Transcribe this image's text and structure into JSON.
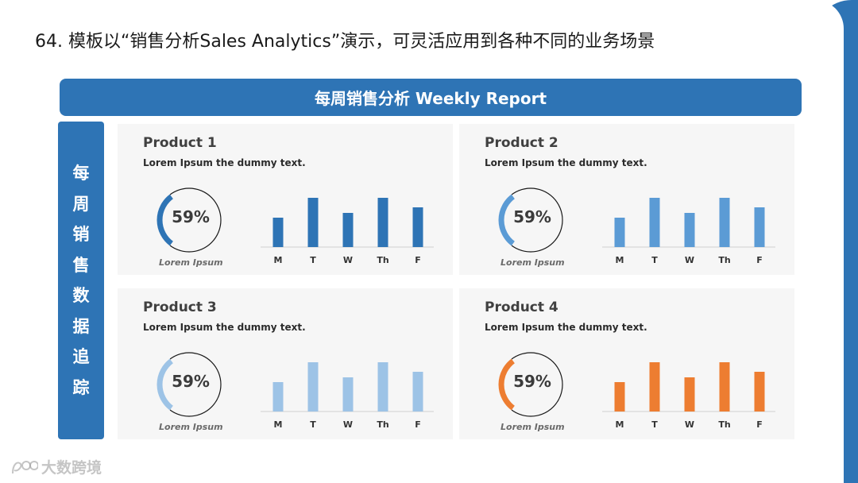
{
  "slide_title": "64. 模板以“销售分析Sales Analytics”演示，可灵活应用到各种不同的业务场景",
  "banner_title": "每周销售分析 Weekly Report",
  "side_label_chars": [
    "每",
    "周",
    "销",
    "售",
    "数",
    "据",
    "追",
    "踪"
  ],
  "watermark": "大数跨境",
  "chart_data": [
    {
      "type": "bar",
      "title": "Product 1",
      "subtitle": "Lorem Ipsum the dummy text.",
      "gauge_percent": 59,
      "gauge_label": "59%",
      "caption": "Lorem Ipsum",
      "categories": [
        "M",
        "T",
        "W",
        "Th",
        "F"
      ],
      "values": [
        37,
        62,
        43,
        62,
        50
      ],
      "ylim": [
        0,
        70
      ],
      "color": "#2e74b5"
    },
    {
      "type": "bar",
      "title": "Product 2",
      "subtitle": "Lorem Ipsum the dummy text.",
      "gauge_percent": 59,
      "gauge_label": "59%",
      "caption": "Lorem Ipsum",
      "categories": [
        "M",
        "T",
        "W",
        "Th",
        "F"
      ],
      "values": [
        37,
        62,
        43,
        62,
        50
      ],
      "ylim": [
        0,
        70
      ],
      "color": "#5b9bd5"
    },
    {
      "type": "bar",
      "title": "Product 3",
      "subtitle": "Lorem Ipsum the dummy text.",
      "gauge_percent": 59,
      "gauge_label": "59%",
      "caption": "Lorem Ipsum",
      "categories": [
        "M",
        "T",
        "W",
        "Th",
        "F"
      ],
      "values": [
        37,
        62,
        43,
        62,
        50
      ],
      "ylim": [
        0,
        70
      ],
      "color": "#9dc3e6"
    },
    {
      "type": "bar",
      "title": "Product 4",
      "subtitle": "Lorem Ipsum the dummy text.",
      "gauge_percent": 59,
      "gauge_label": "59%",
      "caption": "Lorem Ipsum",
      "categories": [
        "M",
        "T",
        "W",
        "Th",
        "F"
      ],
      "values": [
        37,
        62,
        43,
        62,
        50
      ],
      "ylim": [
        0,
        70
      ],
      "color": "#ed7d31"
    }
  ]
}
